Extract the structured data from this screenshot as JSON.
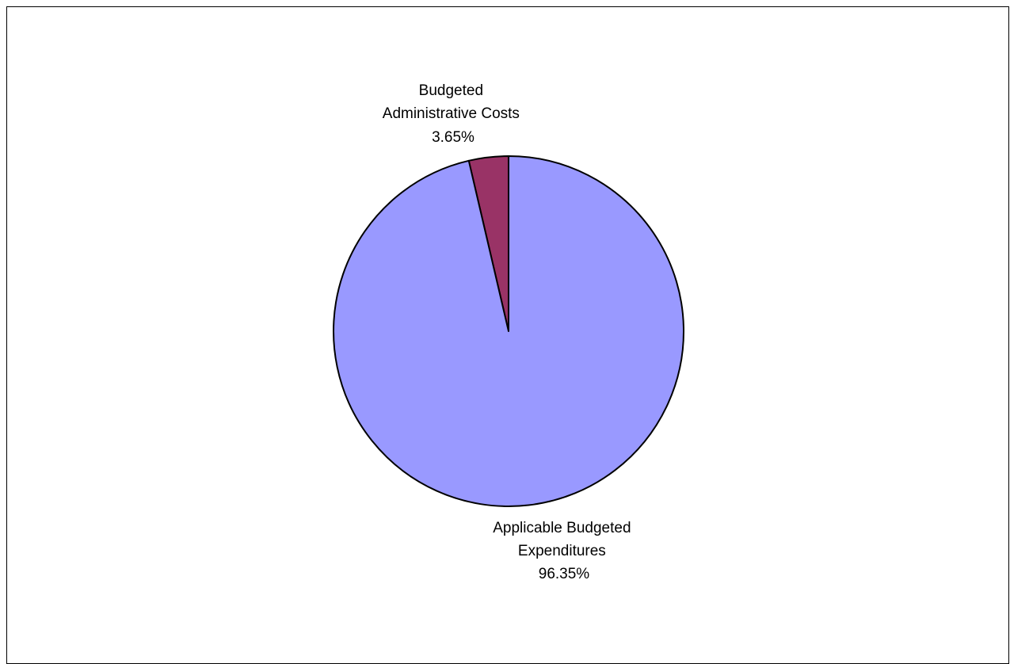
{
  "chart_data": {
    "type": "pie",
    "slices": [
      {
        "label_lines": [
          "Budgeted",
          "Administrative Costs"
        ],
        "percent_label": "3.65%",
        "value": 3.65,
        "color": "#993366"
      },
      {
        "label_lines": [
          "Applicable Budgeted",
          "Expenditures"
        ],
        "percent_label": "96.35%",
        "value": 96.35,
        "color": "#9999FF"
      }
    ],
    "start_angle": "12 o'clock",
    "direction": "counter-clockwise",
    "border_color": "#000000"
  }
}
